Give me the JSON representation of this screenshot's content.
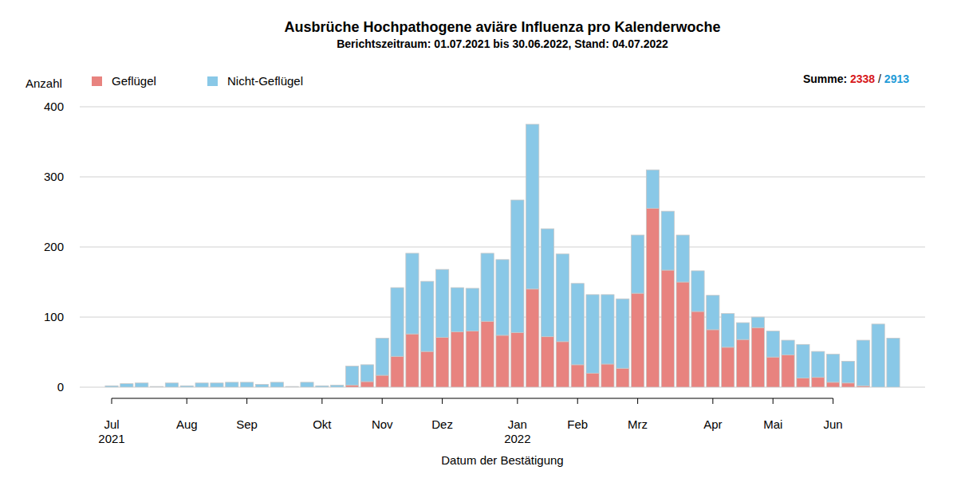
{
  "chart_data": {
    "type": "bar",
    "title": "Ausbrüche Hochpathogene aviäre Influenza pro Kalenderwoche",
    "subtitle": "Berichtszeitraum: 01.07.2021 bis 30.06.2022, Stand: 04.07.2022",
    "y_label": "Anzahl",
    "x_label": "Datum der Bestätigung",
    "stacked": true,
    "grid": true,
    "legend": "top-left",
    "totals": {
      "label": "Summe:",
      "separator": "/",
      "values": [
        2338,
        2913
      ],
      "colors": [
        "#d7191c",
        "#1e9bd7"
      ]
    },
    "ylim": [
      0,
      400
    ],
    "yticks": [
      0,
      100,
      200,
      300,
      400
    ],
    "categories": [
      "Jul\n2021",
      null,
      null,
      null,
      null,
      "Aug",
      null,
      null,
      null,
      "Sep",
      null,
      null,
      null,
      null,
      "Okt",
      null,
      null,
      null,
      "Nov",
      null,
      null,
      null,
      "Dez",
      null,
      null,
      null,
      null,
      "Jan\n2022",
      null,
      null,
      null,
      "Feb",
      null,
      null,
      null,
      "Mrz",
      null,
      null,
      null,
      null,
      "Apr",
      null,
      null,
      null,
      "Mai",
      null,
      null,
      null,
      "Jun",
      null,
      null,
      null,
      null
    ],
    "series": [
      {
        "name": "Geflügel",
        "color": "#e8837f",
        "values": [
          0,
          0,
          0,
          0,
          0,
          0,
          0,
          0,
          0,
          0,
          0,
          0,
          0,
          0,
          0,
          0,
          3,
          8,
          17,
          44,
          76,
          51,
          71,
          79,
          80,
          94,
          74,
          78,
          140,
          72,
          65,
          32,
          20,
          33,
          27,
          134,
          255,
          167,
          150,
          108,
          82,
          57,
          68,
          85,
          43,
          46,
          13,
          14,
          7,
          6,
          2,
          0,
          0
        ]
      },
      {
        "name": "Nicht-Geflügel",
        "color": "#89c8e7",
        "values": [
          2,
          5,
          6,
          1,
          6,
          2,
          6,
          6,
          7,
          7,
          4,
          7,
          1,
          7,
          2,
          3,
          27,
          24,
          53,
          98,
          115,
          100,
          97,
          63,
          61,
          97,
          108,
          189,
          235,
          154,
          125,
          116,
          112,
          99,
          99,
          83,
          55,
          84,
          67,
          58,
          49,
          48,
          24,
          15,
          37,
          21,
          48,
          37,
          40,
          31,
          65,
          90,
          70
        ]
      }
    ]
  }
}
